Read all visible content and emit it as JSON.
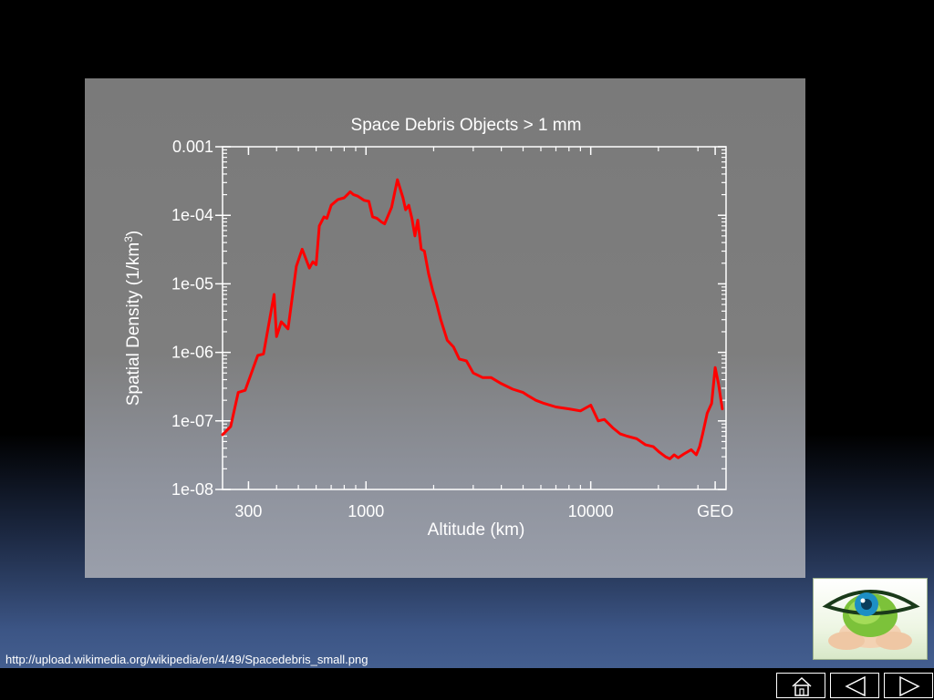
{
  "source_url": "http://upload.wikimedia.org/wikipedia/en/4/49/Spacedebris_small.png",
  "thumbnail": {
    "icon": "green-eye-globe-in-hands-icon"
  },
  "nav": [
    {
      "name": "home-button",
      "icon": "home-icon"
    },
    {
      "name": "previous-button",
      "icon": "triangle-left-icon"
    },
    {
      "name": "next-button",
      "icon": "triangle-right-icon"
    }
  ],
  "colors": {
    "series": "#ff0000",
    "panel": "#7c7c7c",
    "axis": "#ffffff"
  },
  "chart_data": {
    "type": "line",
    "title": "Space Debris Objects > 1 mm",
    "xlabel": "Altitude (km)",
    "ylabel_main": "Spatial Density (1/km",
    "ylabel_sup": "3",
    "ylabel_end": ")",
    "x_scale": "log",
    "y_scale": "log",
    "xlim": [
      230,
      40000
    ],
    "ylim": [
      1e-08,
      0.001
    ],
    "x_ticks": [
      {
        "value": 300,
        "label": "300"
      },
      {
        "value": 1000,
        "label": "1000"
      },
      {
        "value": 10000,
        "label": "10000"
      },
      {
        "value": 35786,
        "label": "GEO"
      }
    ],
    "y_ticks": [
      {
        "value": 0.001,
        "label": "0.001"
      },
      {
        "value": 0.0001,
        "label": "1e-04"
      },
      {
        "value": 1e-05,
        "label": "1e-05"
      },
      {
        "value": 1e-06,
        "label": "1e-06"
      },
      {
        "value": 1e-07,
        "label": "1e-07"
      },
      {
        "value": 1e-08,
        "label": "1e-08"
      }
    ],
    "grid": false,
    "series": [
      {
        "x": [
          230,
          250,
          270,
          290,
          330,
          350,
          390,
          400,
          420,
          450,
          490,
          520,
          560,
          580,
          600,
          620,
          650,
          670,
          700,
          750,
          800,
          850,
          880,
          920,
          980,
          1030,
          1070,
          1120,
          1170,
          1210,
          1300,
          1380,
          1460,
          1500,
          1550,
          1600,
          1650,
          1700,
          1760,
          1820,
          1900,
          1980,
          2050,
          2150,
          2300,
          2450,
          2600,
          2800,
          3000,
          3300,
          3600,
          4000,
          4500,
          5000,
          5300,
          5700,
          6200,
          7000,
          8000,
          9000,
          10000,
          10800,
          11500,
          12500,
          13500,
          14500,
          16000,
          17500,
          19000,
          20200,
          21500,
          22500,
          23500,
          24500,
          26000,
          28000,
          29500,
          30500,
          31500,
          33000,
          34500,
          35786,
          37000,
          38500
        ],
        "y": [
          6.3e-08,
          8.3e-08,
          2.6e-07,
          2.8e-07,
          9e-07,
          9.5e-07,
          7e-06,
          1.7e-06,
          2.8e-06,
          2.2e-06,
          1.8e-05,
          3.2e-05,
          1.7e-05,
          2.1e-05,
          1.9e-05,
          7e-05,
          9.5e-05,
          9e-05,
          0.00014,
          0.00017,
          0.00018,
          0.00022,
          0.0002,
          0.00019,
          0.000165,
          0.00016,
          9.5e-05,
          9e-05,
          8e-05,
          7.5e-05,
          0.00013,
          0.00033,
          0.00018,
          0.00012,
          0.00014,
          9e-05,
          5e-05,
          8.5e-05,
          3.2e-05,
          3e-05,
          1.4e-05,
          8e-06,
          5.5e-06,
          3e-06,
          1.5e-06,
          1.2e-06,
          8e-07,
          7.5e-07,
          5e-07,
          4.3e-07,
          4.3e-07,
          3.5e-07,
          2.9e-07,
          2.6e-07,
          2.3e-07,
          2e-07,
          1.8e-07,
          1.6e-07,
          1.5e-07,
          1.4e-07,
          1.7e-07,
          1e-07,
          1.05e-07,
          8e-08,
          6.5e-08,
          6e-08,
          5.5e-08,
          4.5e-08,
          4.2e-08,
          3.5e-08,
          3e-08,
          2.8e-08,
          3.2e-08,
          2.9e-08,
          3.3e-08,
          3.8e-08,
          3.2e-08,
          4.2e-08,
          6.5e-08,
          1.3e-07,
          1.8e-07,
          6e-07,
          3.5e-07,
          1.5e-07
        ]
      }
    ]
  }
}
